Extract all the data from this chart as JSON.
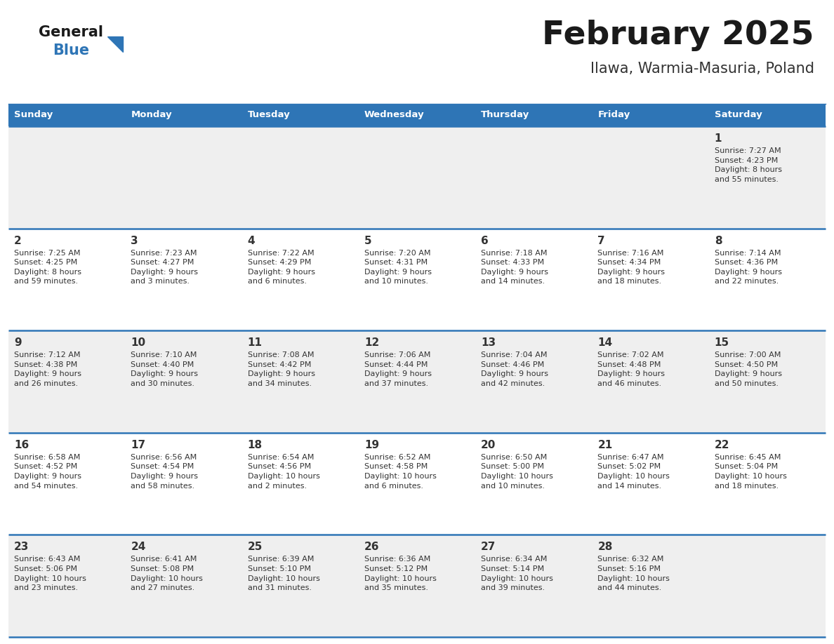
{
  "title": "February 2025",
  "subtitle": "Ilawa, Warmia-Masuria, Poland",
  "header_bg": "#2E75B6",
  "header_text_color": "#FFFFFF",
  "cell_bg_light": "#EFEFEF",
  "cell_bg_white": "#FFFFFF",
  "day_number_color": "#333333",
  "info_text_color": "#333333",
  "border_color": "#2E75B6",
  "days_of_week": [
    "Sunday",
    "Monday",
    "Tuesday",
    "Wednesday",
    "Thursday",
    "Friday",
    "Saturday"
  ],
  "weeks": [
    [
      {
        "day": null,
        "info": null
      },
      {
        "day": null,
        "info": null
      },
      {
        "day": null,
        "info": null
      },
      {
        "day": null,
        "info": null
      },
      {
        "day": null,
        "info": null
      },
      {
        "day": null,
        "info": null
      },
      {
        "day": 1,
        "info": "Sunrise: 7:27 AM\nSunset: 4:23 PM\nDaylight: 8 hours\nand 55 minutes."
      }
    ],
    [
      {
        "day": 2,
        "info": "Sunrise: 7:25 AM\nSunset: 4:25 PM\nDaylight: 8 hours\nand 59 minutes."
      },
      {
        "day": 3,
        "info": "Sunrise: 7:23 AM\nSunset: 4:27 PM\nDaylight: 9 hours\nand 3 minutes."
      },
      {
        "day": 4,
        "info": "Sunrise: 7:22 AM\nSunset: 4:29 PM\nDaylight: 9 hours\nand 6 minutes."
      },
      {
        "day": 5,
        "info": "Sunrise: 7:20 AM\nSunset: 4:31 PM\nDaylight: 9 hours\nand 10 minutes."
      },
      {
        "day": 6,
        "info": "Sunrise: 7:18 AM\nSunset: 4:33 PM\nDaylight: 9 hours\nand 14 minutes."
      },
      {
        "day": 7,
        "info": "Sunrise: 7:16 AM\nSunset: 4:34 PM\nDaylight: 9 hours\nand 18 minutes."
      },
      {
        "day": 8,
        "info": "Sunrise: 7:14 AM\nSunset: 4:36 PM\nDaylight: 9 hours\nand 22 minutes."
      }
    ],
    [
      {
        "day": 9,
        "info": "Sunrise: 7:12 AM\nSunset: 4:38 PM\nDaylight: 9 hours\nand 26 minutes."
      },
      {
        "day": 10,
        "info": "Sunrise: 7:10 AM\nSunset: 4:40 PM\nDaylight: 9 hours\nand 30 minutes."
      },
      {
        "day": 11,
        "info": "Sunrise: 7:08 AM\nSunset: 4:42 PM\nDaylight: 9 hours\nand 34 minutes."
      },
      {
        "day": 12,
        "info": "Sunrise: 7:06 AM\nSunset: 4:44 PM\nDaylight: 9 hours\nand 37 minutes."
      },
      {
        "day": 13,
        "info": "Sunrise: 7:04 AM\nSunset: 4:46 PM\nDaylight: 9 hours\nand 42 minutes."
      },
      {
        "day": 14,
        "info": "Sunrise: 7:02 AM\nSunset: 4:48 PM\nDaylight: 9 hours\nand 46 minutes."
      },
      {
        "day": 15,
        "info": "Sunrise: 7:00 AM\nSunset: 4:50 PM\nDaylight: 9 hours\nand 50 minutes."
      }
    ],
    [
      {
        "day": 16,
        "info": "Sunrise: 6:58 AM\nSunset: 4:52 PM\nDaylight: 9 hours\nand 54 minutes."
      },
      {
        "day": 17,
        "info": "Sunrise: 6:56 AM\nSunset: 4:54 PM\nDaylight: 9 hours\nand 58 minutes."
      },
      {
        "day": 18,
        "info": "Sunrise: 6:54 AM\nSunset: 4:56 PM\nDaylight: 10 hours\nand 2 minutes."
      },
      {
        "day": 19,
        "info": "Sunrise: 6:52 AM\nSunset: 4:58 PM\nDaylight: 10 hours\nand 6 minutes."
      },
      {
        "day": 20,
        "info": "Sunrise: 6:50 AM\nSunset: 5:00 PM\nDaylight: 10 hours\nand 10 minutes."
      },
      {
        "day": 21,
        "info": "Sunrise: 6:47 AM\nSunset: 5:02 PM\nDaylight: 10 hours\nand 14 minutes."
      },
      {
        "day": 22,
        "info": "Sunrise: 6:45 AM\nSunset: 5:04 PM\nDaylight: 10 hours\nand 18 minutes."
      }
    ],
    [
      {
        "day": 23,
        "info": "Sunrise: 6:43 AM\nSunset: 5:06 PM\nDaylight: 10 hours\nand 23 minutes."
      },
      {
        "day": 24,
        "info": "Sunrise: 6:41 AM\nSunset: 5:08 PM\nDaylight: 10 hours\nand 27 minutes."
      },
      {
        "day": 25,
        "info": "Sunrise: 6:39 AM\nSunset: 5:10 PM\nDaylight: 10 hours\nand 31 minutes."
      },
      {
        "day": 26,
        "info": "Sunrise: 6:36 AM\nSunset: 5:12 PM\nDaylight: 10 hours\nand 35 minutes."
      },
      {
        "day": 27,
        "info": "Sunrise: 6:34 AM\nSunset: 5:14 PM\nDaylight: 10 hours\nand 39 minutes."
      },
      {
        "day": 28,
        "info": "Sunrise: 6:32 AM\nSunset: 5:16 PM\nDaylight: 10 hours\nand 44 minutes."
      },
      {
        "day": null,
        "info": null
      }
    ]
  ],
  "logo_general_color": "#1a1a1a",
  "logo_blue_color": "#2E75B6"
}
